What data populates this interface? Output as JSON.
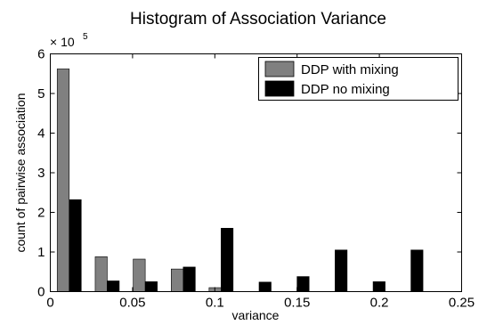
{
  "chart_data": {
    "type": "bar",
    "title": "Histogram of Association Variance",
    "xlabel": "variance",
    "ylabel": "count of pairwise association",
    "xlim": [
      0,
      0.25
    ],
    "ylim": [
      0,
      6
    ],
    "xticks": [
      "0",
      "0.05",
      "0.1",
      "0.15",
      "0.2",
      "0.25"
    ],
    "yticks": [
      "0",
      "1",
      "2",
      "3",
      "4",
      "5",
      "6"
    ],
    "y_multiplier_base": "× 10",
    "y_multiplier_exp": "5",
    "grid": false,
    "legend_position": "top-right",
    "bin_centers": [
      0.0115,
      0.0346,
      0.0577,
      0.0808,
      0.1038,
      0.1269,
      0.15,
      0.1731,
      0.1962,
      0.2192
    ],
    "series": [
      {
        "name": "DDP with mixing",
        "color": "#808080",
        "values": [
          5.62,
          0.88,
          0.82,
          0.57,
          0.1,
          0.0,
          0.0,
          0.0,
          0.0,
          0.0
        ]
      },
      {
        "name": "DDP no mixing",
        "color": "#000000",
        "values": [
          2.32,
          0.27,
          0.25,
          0.62,
          1.6,
          0.24,
          0.38,
          1.05,
          0.25,
          1.05
        ]
      }
    ]
  }
}
